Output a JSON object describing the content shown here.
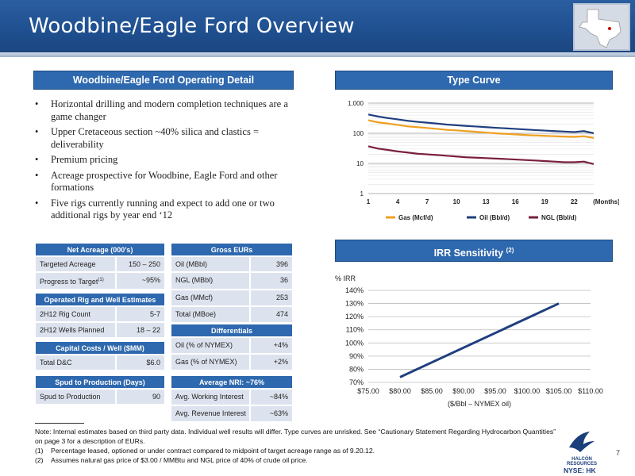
{
  "title": "Woodbine/Eagle Ford Overview",
  "operating_detail": {
    "header": "Woodbine/Eagle Ford Operating Detail",
    "bullets": [
      "Horizontal drilling and modern completion techniques are a game changer",
      "Upper Cretaceous section ~40% silica and clastics = deliverability",
      "Premium pricing",
      "Acreage prospective for Woodbine, Eagle Ford and other formations",
      "Five rigs currently running and expect to add one or two additional rigs by year end ‘12"
    ]
  },
  "tables": {
    "net_acreage": {
      "header": "Net Acreage (000’s)",
      "rows": [
        {
          "label": "Targeted Acreage",
          "value": "150 – 250"
        },
        {
          "label": "Progress to Target",
          "sup": "(1)",
          "value": "~95%"
        }
      ]
    },
    "rig_estimates": {
      "header": "Operated Rig and Well Estimates",
      "rows": [
        {
          "label": "2H12 Rig Count",
          "value": "5-7"
        },
        {
          "label": "2H12 Wells Planned",
          "value": "18 – 22"
        }
      ]
    },
    "capital_costs": {
      "header": "Capital Costs / Well ($MM)",
      "rows": [
        {
          "label": "Total D&C",
          "value": "$6.0"
        }
      ]
    },
    "spud": {
      "header": "Spud to Production (Days)",
      "rows": [
        {
          "label": "Spud to Production",
          "value": "90"
        }
      ]
    },
    "gross_eurs": {
      "header": "Gross EURs",
      "rows": [
        {
          "label": "Oil (MBbl)",
          "value": "396"
        },
        {
          "label": "NGL (MBbl)",
          "value": "36"
        },
        {
          "label": "Gas (MMcf)",
          "value": "253"
        },
        {
          "label": "Total (MBoe)",
          "value": "474"
        }
      ]
    },
    "differentials": {
      "header": "Differentials",
      "rows": [
        {
          "label": "Oil (% of NYMEX)",
          "value": "+4%"
        },
        {
          "label": "Gas (% of NYMEX)",
          "value": "+2%"
        }
      ]
    },
    "nri": {
      "header": "Average NRI: ~76%",
      "rows": [
        {
          "label": "Avg. Working Interest",
          "value": "~84%"
        },
        {
          "label": "Avg. Revenue Interest",
          "value": "~63%"
        }
      ]
    }
  },
  "type_curve_header": "Type Curve",
  "irr_header": "IRR Sensitivity",
  "irr_header_sup": "(2)",
  "footnotes": {
    "note": "Note: Internal estimates based on third party data. Individual well results will differ. Type curves are unrisked.  See “Cautionary Statement Regarding Hydrocarbon Quantities” on page 3 for a description of EURs.",
    "items": [
      {
        "n": "(1)",
        "text": "Percentage leased, optioned or under contract compared to midpoint of target acreage range as of 9.20.12."
      },
      {
        "n": "(2)",
        "text": "Assumes natural gas price of $3.00 / MMBtu and NGL price of 40% of crude oil price."
      }
    ]
  },
  "logo_text": "HALCÓN RESOURCES",
  "nyse": "NYSE: HK",
  "page_number": "7",
  "colors": {
    "header_blue": "#1f4f8f",
    "bar_blue": "#2e68ae",
    "gas": "#f0a020",
    "oil": "#1f3f7f",
    "ngl": "#7a1f3f",
    "irr_line": "#1f3f7f"
  },
  "chart_data": [
    {
      "type": "line",
      "scale": "log",
      "x": [
        1,
        2,
        3,
        4,
        5,
        6,
        7,
        8,
        9,
        10,
        11,
        12,
        13,
        14,
        15,
        16,
        17,
        18,
        19,
        20,
        21,
        22,
        23,
        24
      ],
      "x_ticks": [
        "1",
        "4",
        "7",
        "10",
        "13",
        "16",
        "19",
        "22"
      ],
      "x_unit_label": "(Months)",
      "y_ticks": [
        "1",
        "10",
        "100",
        "1,000"
      ],
      "ylim": [
        1,
        1000
      ],
      "legend_position": "bottom",
      "series": [
        {
          "name": "Gas (Mcf/d)",
          "color": "#f0a020",
          "values": [
            270,
            230,
            210,
            190,
            170,
            160,
            150,
            140,
            130,
            125,
            118,
            112,
            106,
            100,
            96,
            92,
            88,
            85,
            82,
            80,
            78,
            76,
            80,
            70
          ]
        },
        {
          "name": "Oil (Bbl/d)",
          "color": "#1f3f7f",
          "values": [
            420,
            360,
            320,
            290,
            260,
            240,
            225,
            210,
            195,
            185,
            175,
            168,
            160,
            152,
            146,
            140,
            134,
            128,
            123,
            118,
            114,
            110,
            118,
            100
          ]
        },
        {
          "name": "NGL (Bbl/d)",
          "color": "#7a1f3f",
          "values": [
            37,
            31,
            28,
            25,
            23,
            21,
            20,
            19,
            18,
            17,
            16,
            15.5,
            15,
            14.5,
            14,
            13.5,
            13,
            12.5,
            12,
            11.5,
            11,
            11,
            11.5,
            9.5
          ]
        }
      ]
    },
    {
      "type": "line",
      "ylabel": "% IRR",
      "xlabel": "($/Bbl – NYMEX oil)",
      "x_ticks": [
        "$75.00",
        "$80.00",
        "$85.00",
        "$90.00",
        "$95.00",
        "$100.00",
        "$105.00",
        "$110.00"
      ],
      "xlim": [
        75,
        110
      ],
      "y_ticks": [
        "70%",
        "80%",
        "90%",
        "100%",
        "110%",
        "120%",
        "130%",
        "140%"
      ],
      "ylim": [
        70,
        140
      ],
      "series": [
        {
          "values_x": [
            80,
            105
          ],
          "values": [
            74,
            130
          ]
        }
      ]
    }
  ]
}
